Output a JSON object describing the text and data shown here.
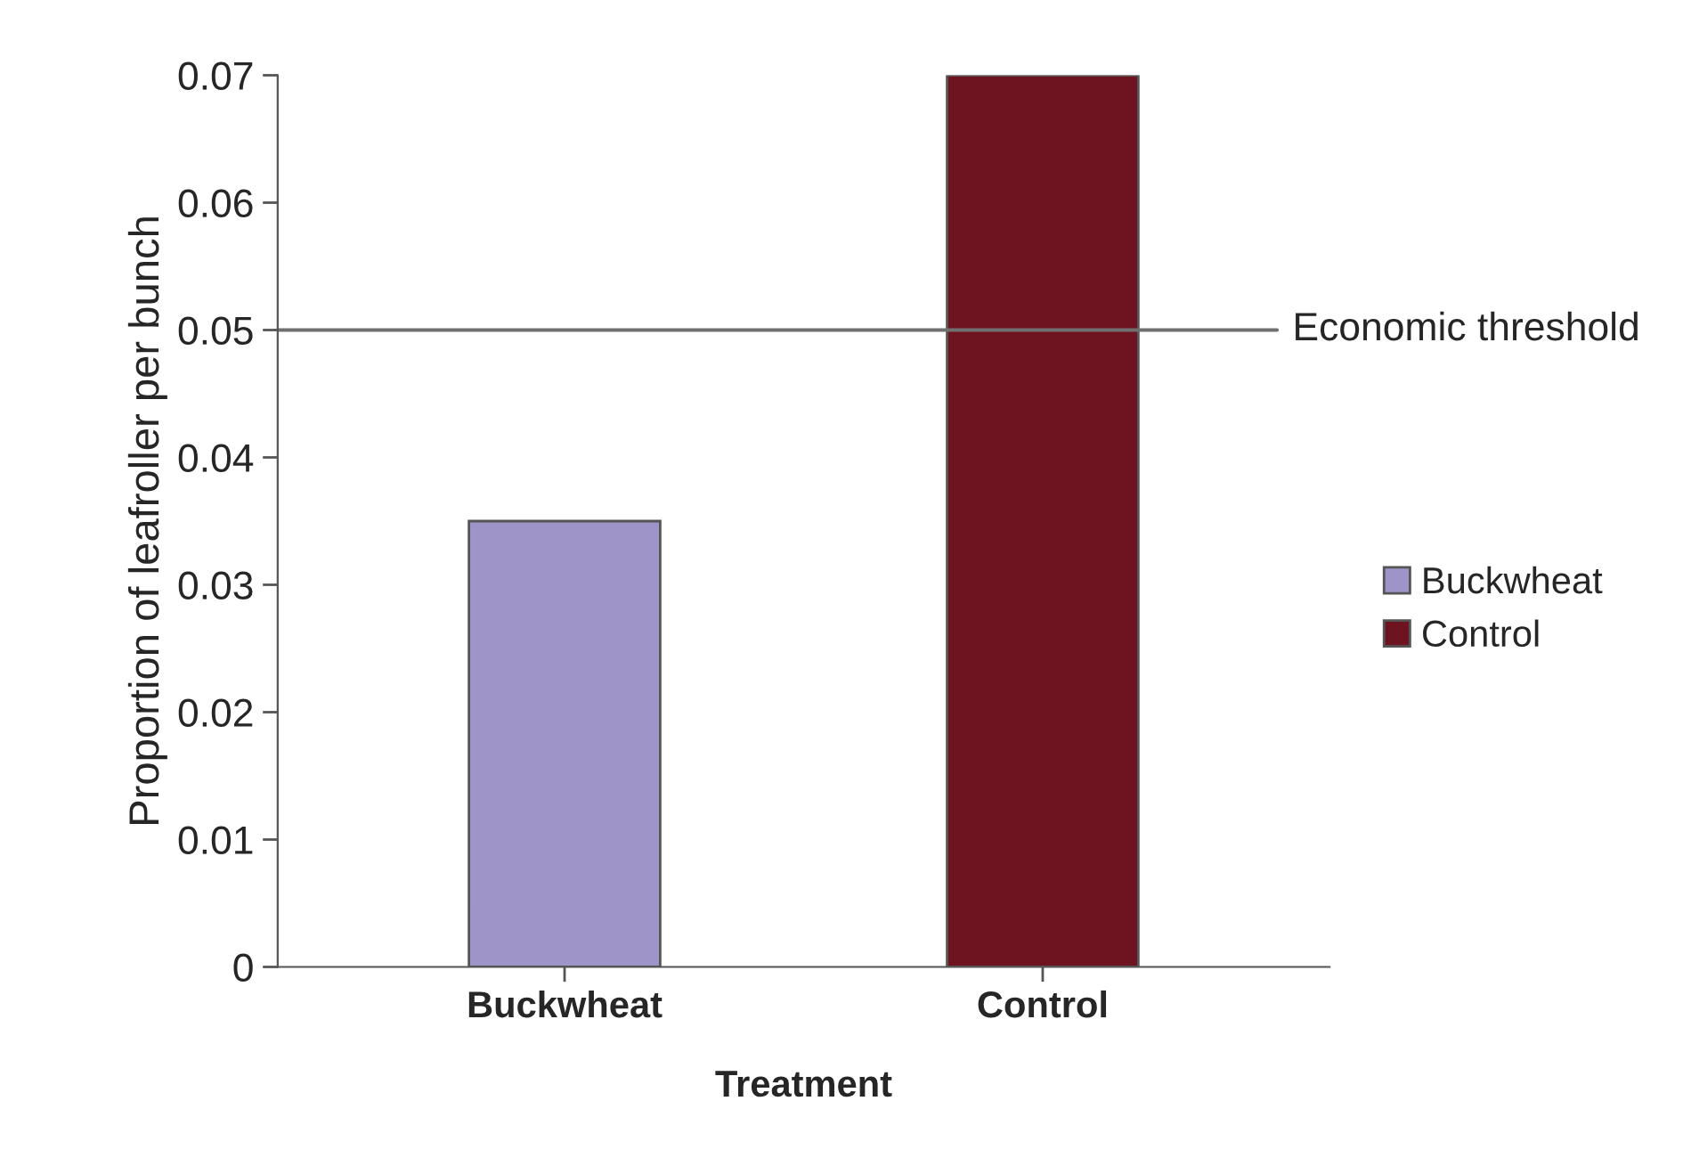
{
  "chart_data": {
    "type": "bar",
    "xlabel": "Treatment",
    "ylabel": "Proportion of leafroller per bunch",
    "categories": [
      "Buckwheat",
      "Control"
    ],
    "series": [
      {
        "name": "Buckwheat",
        "color": "#9f94c8",
        "values": [
          0.035,
          null
        ]
      },
      {
        "name": "Control",
        "color": "#6e1420",
        "values": [
          null,
          0.07
        ]
      }
    ],
    "ylim": [
      0,
      0.07
    ],
    "yticks": [
      0,
      0.01,
      0.02,
      0.03,
      0.04,
      0.05,
      0.06,
      0.07
    ],
    "ref_lines": [
      {
        "axis": "y",
        "value": 0.05,
        "label": "Economic threshold",
        "color": "#707070"
      }
    ],
    "legend": "right",
    "grid": false
  }
}
